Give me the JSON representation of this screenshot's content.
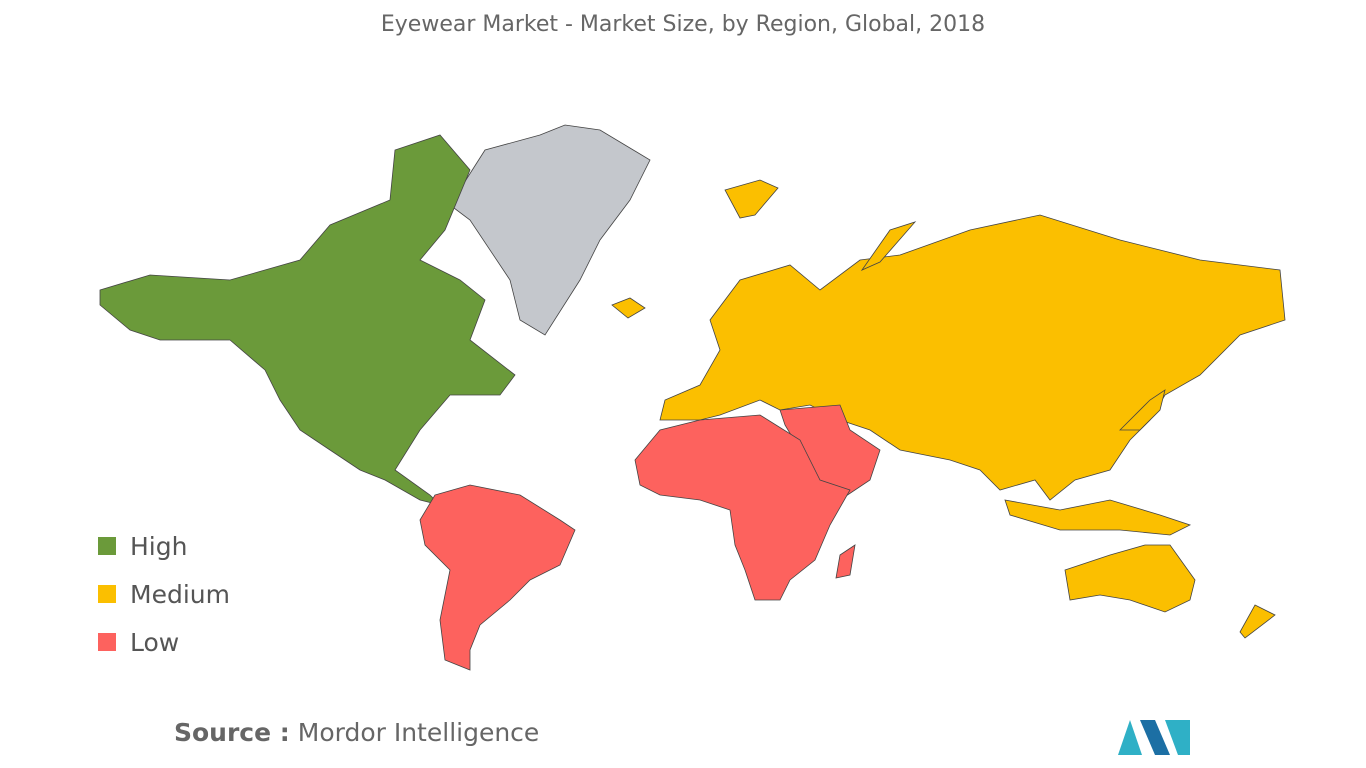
{
  "header": {
    "title": "Eyewear Market - Market Size, by Region, Global, 2018"
  },
  "legend": {
    "items": [
      {
        "label": "High",
        "color": "#6b9a3a"
      },
      {
        "label": "Medium",
        "color": "#fbbf00"
      },
      {
        "label": "Low",
        "color": "#fd625e"
      }
    ]
  },
  "footer": {
    "source_label": "Source :",
    "source": "Mordor Intelligence"
  }
}
